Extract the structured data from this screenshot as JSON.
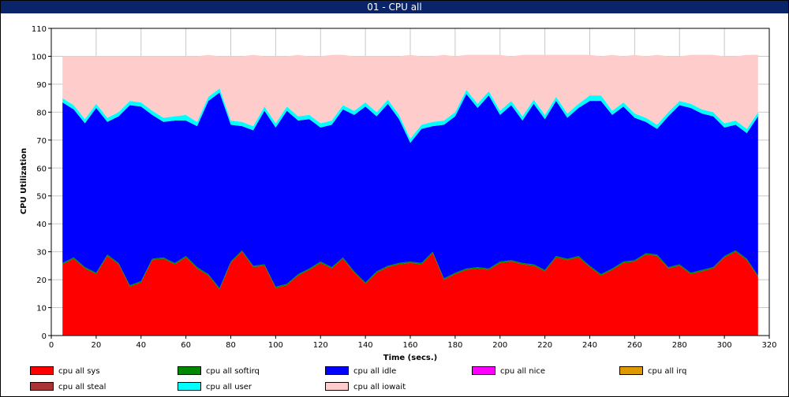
{
  "window": {
    "title": "01 - CPU all"
  },
  "chart_data": {
    "type": "area",
    "stacked": true,
    "xlabel": "Time (secs.)",
    "ylabel": "CPU Utilization",
    "xlim": [
      0,
      320
    ],
    "ylim": [
      0,
      110
    ],
    "x_ticks": [
      0,
      20,
      40,
      60,
      80,
      100,
      120,
      140,
      160,
      180,
      200,
      220,
      240,
      260,
      280,
      300,
      320
    ],
    "y_ticks": [
      0,
      10,
      20,
      30,
      40,
      50,
      60,
      70,
      80,
      90,
      100,
      110
    ],
    "grid": true,
    "legend_position": "bottom",
    "x": [
      5,
      10,
      15,
      20,
      25,
      30,
      35,
      40,
      45,
      50,
      55,
      60,
      65,
      70,
      75,
      80,
      85,
      90,
      95,
      100,
      105,
      110,
      115,
      120,
      125,
      130,
      135,
      140,
      145,
      150,
      155,
      160,
      165,
      170,
      175,
      180,
      185,
      190,
      195,
      200,
      205,
      210,
      215,
      220,
      225,
      230,
      235,
      240,
      245,
      250,
      255,
      260,
      265,
      270,
      275,
      280,
      285,
      290,
      295,
      300,
      305,
      310,
      315
    ],
    "series": [
      {
        "name": "cpu all sys",
        "color": "#ff0000",
        "values": [
          25.5,
          27.5,
          24,
          22,
          28.5,
          25.5,
          17.5,
          19,
          27,
          27.5,
          25.5,
          28,
          24,
          21.5,
          16.5,
          26,
          30,
          24.5,
          25,
          17,
          18,
          21.5,
          23.5,
          26,
          24,
          27.5,
          22.5,
          18.5,
          22.5,
          24.5,
          25.5,
          26,
          25.5,
          29.5,
          20,
          22,
          23.5,
          24,
          23.5,
          26,
          26.5,
          25.5,
          25,
          23,
          28,
          27,
          28,
          24.5,
          21.5,
          23.5,
          26,
          26.5,
          29,
          28.5,
          24,
          25,
          22,
          23,
          24,
          28,
          30,
          27,
          21
        ]
      },
      {
        "name": "cpu all softirq",
        "color": "#008800",
        "values": [
          0.5,
          0.5,
          0.5,
          0.5,
          0.5,
          0.5,
          0.5,
          0.5,
          0.5,
          0.5,
          0.5,
          0.5,
          0.5,
          0.5,
          0.5,
          0.5,
          0.5,
          0.5,
          0.5,
          0.5,
          0.5,
          0.5,
          0.5,
          0.5,
          0.5,
          0.5,
          0.5,
          0.5,
          0.5,
          0.5,
          0.5,
          0.5,
          0.5,
          0.5,
          0.5,
          0.5,
          0.5,
          0.5,
          0.5,
          0.5,
          0.5,
          0.5,
          0.5,
          0.5,
          0.5,
          0.5,
          0.5,
          0.5,
          0.5,
          0.5,
          0.5,
          0.5,
          0.5,
          0.5,
          0.5,
          0.5,
          0.5,
          0.5,
          0.5,
          0.5,
          0.5,
          0.5,
          0.5
        ]
      },
      {
        "name": "cpu all idle",
        "color": "#0000ff",
        "values": [
          57.5,
          53,
          51.5,
          59,
          47.5,
          52.5,
          64.5,
          62.5,
          51.5,
          48.5,
          51,
          48.5,
          50.5,
          62,
          70,
          49,
          44.5,
          48.5,
          55,
          57,
          62,
          55,
          53.5,
          48,
          51,
          53,
          56,
          63,
          55.5,
          58,
          51.5,
          42.5,
          48,
          45,
          55,
          56,
          62.5,
          57,
          62,
          52.5,
          55.5,
          51,
          57.5,
          54,
          55.5,
          50.5,
          53,
          59,
          62,
          55,
          55.5,
          51,
          47,
          45,
          54,
          57,
          59,
          56,
          54,
          46,
          45,
          45,
          57
        ]
      },
      {
        "name": "cpu all nice",
        "color": "#ff00ff",
        "values": [
          0,
          0,
          0,
          0,
          0,
          0,
          0,
          0,
          0,
          0,
          0,
          0,
          0,
          0,
          0,
          0,
          0,
          0,
          0,
          0,
          0,
          0,
          0,
          0,
          0,
          0,
          0,
          0,
          0,
          0,
          0,
          0,
          0,
          0,
          0,
          0,
          0,
          0,
          0,
          0,
          0,
          0,
          0,
          0,
          0,
          0,
          0,
          0,
          0,
          0,
          0,
          0,
          0,
          0,
          0,
          0,
          0,
          0,
          0,
          0,
          0,
          0,
          0
        ]
      },
      {
        "name": "cpu all irq",
        "color": "#dd9900",
        "values": [
          0,
          0,
          0,
          0,
          0,
          0,
          0,
          0,
          0,
          0,
          0,
          0,
          0,
          0,
          0,
          0,
          0,
          0,
          0,
          0,
          0,
          0,
          0,
          0,
          0,
          0,
          0,
          0,
          0,
          0,
          0,
          0,
          0,
          0,
          0,
          0,
          0,
          0,
          0,
          0,
          0,
          0,
          0,
          0,
          0,
          0,
          0,
          0,
          0,
          0,
          0,
          0,
          0,
          0,
          0,
          0,
          0,
          0,
          0,
          0,
          0,
          0,
          0
        ]
      },
      {
        "name": "cpu all steal",
        "color": "#aa3333",
        "values": [
          0,
          0,
          0,
          0,
          0,
          0,
          0,
          0,
          0,
          0,
          0,
          0,
          0,
          0,
          0,
          0,
          0,
          0,
          0,
          0,
          0,
          0,
          0,
          0,
          0,
          0,
          0,
          0,
          0,
          0,
          0,
          0,
          0,
          0,
          0,
          0,
          0,
          0,
          0,
          0,
          0,
          0,
          0,
          0,
          0,
          0,
          0,
          0,
          0,
          0,
          0,
          0,
          0,
          0,
          0,
          0,
          0,
          0,
          0,
          0,
          0,
          0,
          0
        ]
      },
      {
        "name": "cpu all user",
        "color": "#00ffff",
        "values": [
          1.5,
          1.5,
          1.5,
          1.5,
          1.5,
          1.5,
          1.5,
          1.5,
          1.5,
          1.5,
          1.5,
          2,
          1.5,
          1.5,
          1.5,
          1.5,
          1.5,
          1.5,
          1.5,
          1.5,
          1.5,
          1.5,
          1.5,
          1.5,
          1.5,
          1.5,
          1.5,
          1.5,
          1.5,
          1.5,
          1.5,
          1.5,
          1.5,
          1.5,
          1.5,
          1.5,
          1.5,
          1.5,
          1.5,
          1.5,
          1.5,
          1.5,
          1.5,
          1.5,
          1.5,
          1.5,
          1.5,
          2,
          2,
          1.5,
          1.5,
          1.5,
          1.5,
          1.5,
          1.5,
          1.5,
          1.5,
          1.5,
          1.5,
          1.5,
          1.5,
          1.5,
          1.5
        ]
      },
      {
        "name": "cpu all iowait",
        "color": "#ffcccc",
        "values": [
          15,
          17.5,
          22.5,
          17,
          22,
          20,
          16,
          16.5,
          19.5,
          22,
          21.5,
          21,
          23.5,
          15,
          11.5,
          23,
          23.5,
          25.5,
          18,
          24,
          18,
          22,
          21,
          24,
          23.5,
          18,
          19.5,
          16.5,
          20,
          15.5,
          21,
          30,
          24.5,
          23.5,
          23.5,
          20,
          12.5,
          17.5,
          13,
          20,
          16,
          22,
          16,
          21.5,
          15,
          21,
          17.5,
          14.5,
          14,
          20,
          16.5,
          21,
          22,
          25,
          20,
          16,
          17.5,
          19.5,
          20.5,
          24,
          23,
          26.5,
          20.5
        ]
      }
    ]
  }
}
